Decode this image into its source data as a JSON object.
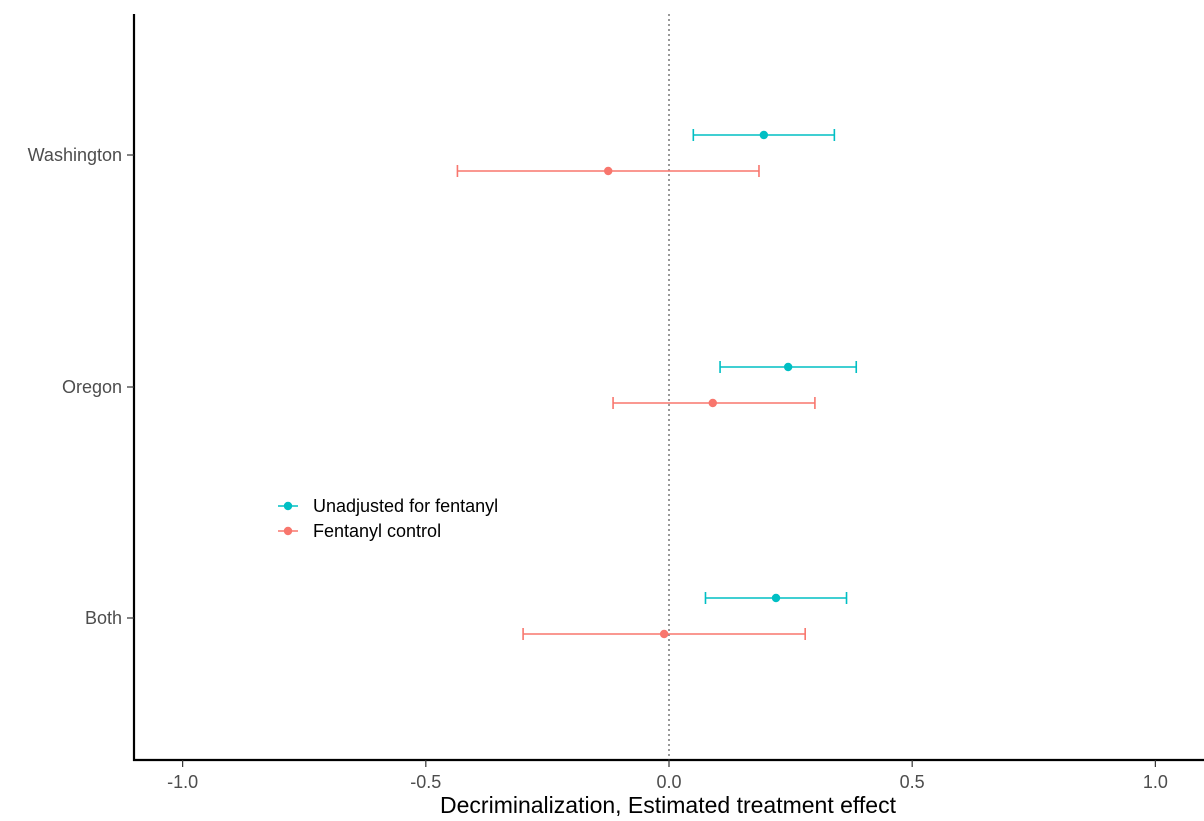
{
  "chart_data": {
    "type": "forest",
    "xlabel": "Decriminalization, Estimated treatment effect",
    "ylabel": "",
    "xlim": [
      -1.1,
      1.1
    ],
    "x_ticks": [
      -1.0,
      -0.5,
      0.0,
      0.5,
      1.0
    ],
    "x_tick_labels": [
      "-1.0",
      "-0.5",
      "0.0",
      "0.5",
      "1.0"
    ],
    "categories": [
      "Washington",
      "Oregon",
      "Both"
    ],
    "reference_line": {
      "x": 0,
      "style": "dotted"
    },
    "grid": false,
    "legend": {
      "position": "inside-left"
    },
    "series": [
      {
        "name": "Unadjusted for fentanyl",
        "color": "#00BFC4",
        "estimates": [
          0.195,
          0.245,
          0.22
        ],
        "lower": [
          0.05,
          0.105,
          0.075
        ],
        "upper": [
          0.34,
          0.385,
          0.365
        ]
      },
      {
        "name": "Fentanyl control",
        "color": "#F8766D",
        "estimates": [
          -0.125,
          0.09,
          -0.01
        ],
        "lower": [
          -0.435,
          -0.115,
          -0.3
        ],
        "upper": [
          0.185,
          0.3,
          0.28
        ]
      }
    ]
  }
}
